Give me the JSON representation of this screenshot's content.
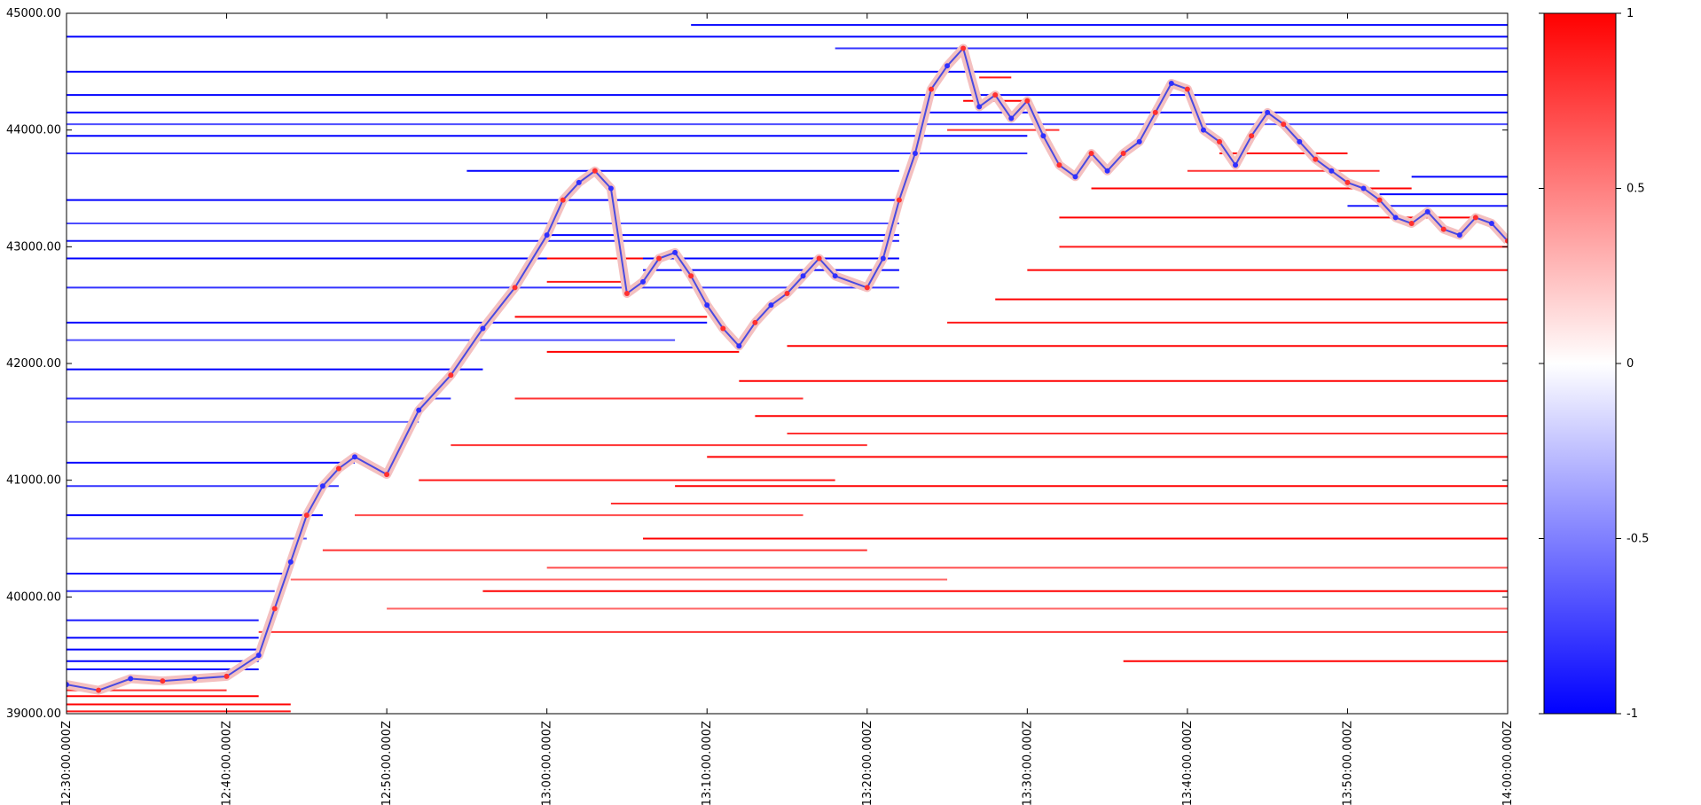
{
  "chart_data": {
    "type": "heatmap",
    "description_kind": "order book liquidity heatmap with price path",
    "x_axis": {
      "range": [
        "12:30:00.000Z",
        "14:00:00.000Z"
      ],
      "tick_labels": [
        "12:30:00.000Z",
        "12:40:00.000Z",
        "12:50:00.000Z",
        "13:00:00.000Z",
        "13:10:00.000Z",
        "13:20:00.000Z",
        "13:30:00.000Z",
        "13:40:00.000Z",
        "13:50:00.000Z",
        "14:00:00.000Z"
      ],
      "label_orientation": "vertical"
    },
    "y_axis": {
      "range": [
        39000,
        45000
      ],
      "ticks": [
        39000,
        40000,
        41000,
        42000,
        43000,
        44000,
        45000
      ],
      "tick_labels": [
        "39000.00",
        "40000.00",
        "41000.00",
        "42000.00",
        "43000.00",
        "44000.00",
        "45000.00"
      ]
    },
    "price_path": {
      "minutes": [
        0,
        2,
        4,
        6,
        8,
        10,
        12,
        13,
        14,
        15,
        16,
        17,
        18,
        20,
        22,
        24,
        26,
        28,
        30,
        31,
        32,
        33,
        34,
        35,
        36,
        37,
        38,
        39,
        40,
        41,
        42,
        43,
        44,
        45,
        46,
        47,
        48,
        50,
        51,
        52,
        53,
        54,
        55,
        56,
        57,
        58,
        59,
        60,
        61,
        62,
        63,
        64,
        65,
        66,
        67,
        68,
        69,
        70,
        71,
        72,
        73,
        74,
        75,
        76,
        77,
        78,
        79,
        80,
        81,
        82,
        83,
        84,
        85,
        86,
        87,
        88,
        89,
        90
      ],
      "prices": [
        39250,
        39200,
        39300,
        39280,
        39300,
        39320,
        39500,
        39900,
        40300,
        40700,
        40950,
        41100,
        41200,
        41050,
        41600,
        41900,
        42300,
        42650,
        43100,
        43400,
        43550,
        43650,
        43500,
        42600,
        42700,
        42900,
        42950,
        42750,
        42500,
        42300,
        42150,
        42350,
        42500,
        42600,
        42750,
        42900,
        42750,
        42650,
        42900,
        43400,
        43800,
        44350,
        44550,
        44700,
        44200,
        44300,
        44100,
        44250,
        43950,
        43700,
        43600,
        43800,
        43650,
        43800,
        43900,
        44150,
        44400,
        44350,
        44000,
        43900,
        43700,
        43950,
        44150,
        44050,
        43900,
        43750,
        43650,
        43550,
        43500,
        43400,
        43250,
        43200,
        43300,
        43150,
        43100,
        43250,
        43200,
        43050
      ]
    },
    "liquidity_levels": {
      "units": "price level (USD), start minute, end minute, normalized imbalance value",
      "levels": [
        [
          44800,
          0,
          90,
          -1
        ],
        [
          44500,
          0,
          90,
          -1
        ],
        [
          44300,
          0,
          90,
          -1
        ],
        [
          44150,
          0,
          90,
          -1
        ],
        [
          44050,
          0,
          90,
          -0.7
        ],
        [
          43950,
          0,
          60,
          -1
        ],
        [
          43800,
          0,
          60,
          -0.8
        ],
        [
          43400,
          0,
          52,
          -1
        ],
        [
          43200,
          0,
          52,
          -0.7
        ],
        [
          43050,
          0,
          52,
          -0.9
        ],
        [
          42900,
          0,
          52,
          -1
        ],
        [
          42650,
          0,
          52,
          -0.8
        ],
        [
          42350,
          0,
          40,
          -1
        ],
        [
          42200,
          0,
          38,
          -0.7
        ],
        [
          41950,
          0,
          26,
          -1
        ],
        [
          41700,
          0,
          24,
          -0.8
        ],
        [
          41500,
          0,
          22,
          -0.6
        ],
        [
          41150,
          0,
          18,
          -1
        ],
        [
          40950,
          0,
          17,
          -0.8
        ],
        [
          40700,
          0,
          16,
          -1
        ],
        [
          40500,
          0,
          15,
          -0.7
        ],
        [
          40200,
          0,
          14,
          -1
        ],
        [
          40050,
          0,
          13,
          -0.8
        ],
        [
          39800,
          0,
          12,
          -0.9
        ],
        [
          39650,
          0,
          12,
          -1
        ],
        [
          39550,
          0,
          12,
          -1
        ],
        [
          39450,
          0,
          12,
          -1
        ],
        [
          39380,
          0,
          12,
          -1
        ],
        [
          44900,
          39,
          90,
          -1
        ],
        [
          44700,
          48,
          90,
          -0.8
        ],
        [
          43650,
          25,
          52,
          -1
        ],
        [
          43100,
          30,
          52,
          -1
        ],
        [
          42800,
          36,
          52,
          -1
        ],
        [
          43600,
          84,
          90,
          -1
        ],
        [
          43450,
          82,
          90,
          -1
        ],
        [
          43350,
          80,
          90,
          -0.9
        ],
        [
          39150,
          0,
          12,
          1
        ],
        [
          39080,
          0,
          14,
          1
        ],
        [
          39020,
          0,
          14,
          0.9
        ],
        [
          39200,
          0,
          10,
          0.8
        ],
        [
          39450,
          66,
          90,
          1
        ],
        [
          39700,
          12,
          90,
          0.8
        ],
        [
          39900,
          20,
          90,
          0.6
        ],
        [
          40050,
          26,
          90,
          1
        ],
        [
          40250,
          30,
          90,
          0.7
        ],
        [
          40500,
          36,
          90,
          1
        ],
        [
          40800,
          34,
          90,
          0.8
        ],
        [
          40950,
          38,
          90,
          1
        ],
        [
          41200,
          40,
          90,
          1
        ],
        [
          41400,
          45,
          90,
          0.8
        ],
        [
          41550,
          43,
          90,
          1
        ],
        [
          41850,
          42,
          90,
          1
        ],
        [
          42150,
          45,
          90,
          1
        ],
        [
          42350,
          55,
          90,
          0.9
        ],
        [
          42550,
          58,
          90,
          1
        ],
        [
          42800,
          60,
          90,
          1
        ],
        [
          43000,
          62,
          90,
          0.9
        ],
        [
          43250,
          62,
          88,
          1
        ],
        [
          43500,
          64,
          84,
          1
        ],
        [
          43650,
          70,
          82,
          0.8
        ],
        [
          43800,
          72,
          80,
          1
        ],
        [
          44000,
          55,
          62,
          0.8
        ],
        [
          44250,
          56,
          60,
          1
        ],
        [
          44450,
          57,
          59,
          0.9
        ],
        [
          42900,
          30,
          36,
          1
        ],
        [
          42700,
          30,
          35,
          0.9
        ],
        [
          42400,
          28,
          40,
          1
        ],
        [
          42100,
          30,
          42,
          1
        ],
        [
          41700,
          28,
          46,
          0.8
        ],
        [
          41300,
          24,
          50,
          0.8
        ],
        [
          41000,
          22,
          48,
          0.9
        ],
        [
          40700,
          18,
          46,
          0.7
        ],
        [
          40400,
          16,
          50,
          0.8
        ],
        [
          40150,
          14,
          55,
          0.6
        ]
      ]
    },
    "colorbar": {
      "range": [
        -1,
        1
      ],
      "ticks": [
        -1,
        -0.5,
        0,
        0.5,
        1
      ],
      "tick_labels": [
        "-1",
        "-0.5",
        "0",
        "0.5",
        "1"
      ],
      "colors": {
        "low": "#0000ff",
        "mid": "#ffffff",
        "high": "#ff0000"
      }
    },
    "title": "",
    "xlabel": "",
    "ylabel": "",
    "grid": false,
    "legend": "colorbar-right"
  }
}
